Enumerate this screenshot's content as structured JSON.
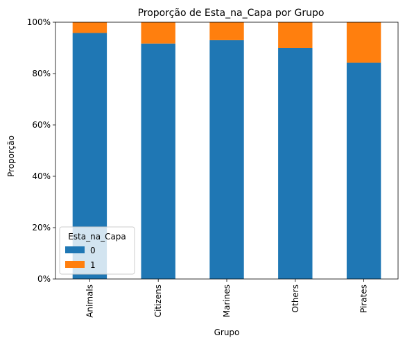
{
  "chart_data": {
    "type": "bar",
    "stacked": true,
    "title": "Proporção de Esta_na_Capa por Grupo",
    "xlabel": "Grupo",
    "ylabel": "Proporção",
    "categories": [
      "Animals",
      "Citizens",
      "Marines",
      "Others",
      "Pirates"
    ],
    "series": [
      {
        "name": "0",
        "color": "#1f77b4",
        "values": [
          0.958,
          0.917,
          0.93,
          0.9,
          0.842
        ]
      },
      {
        "name": "1",
        "color": "#ff7f0e",
        "values": [
          0.042,
          0.083,
          0.07,
          0.1,
          0.158
        ]
      }
    ],
    "ylim": [
      0,
      1.0
    ],
    "yticks": [
      0,
      0.2,
      0.4,
      0.6,
      0.8,
      1.0
    ],
    "ytick_labels": [
      "0%",
      "20%",
      "40%",
      "60%",
      "80%",
      "100%"
    ],
    "grid": false,
    "legend": {
      "title": "Esta_na_Capa",
      "placement": "lower-left"
    }
  }
}
